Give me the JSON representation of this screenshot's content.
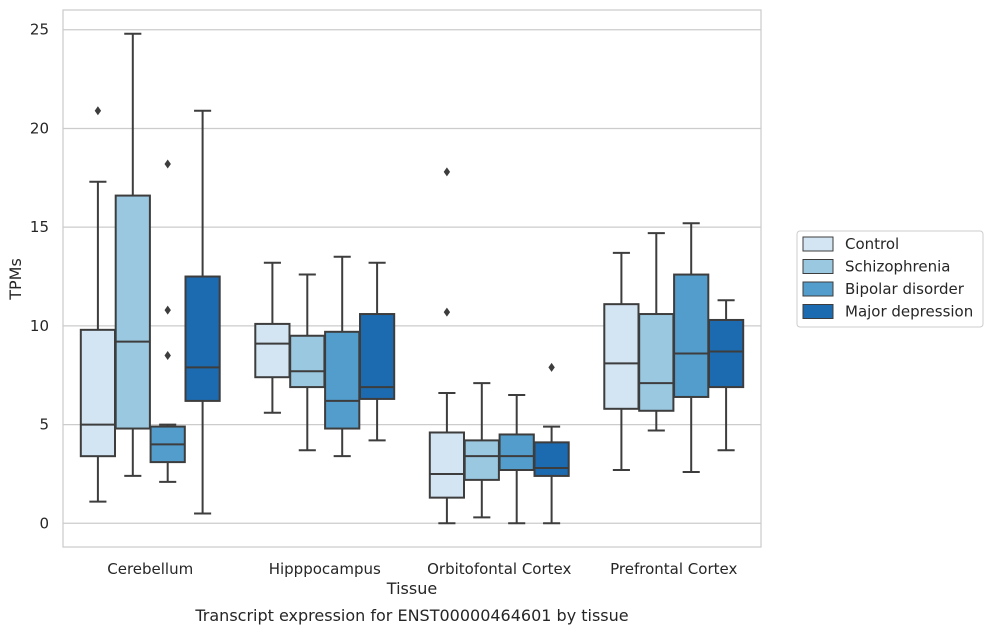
{
  "caption": "Transcript expression for ENST00000464601 by tissue",
  "chart_data": {
    "type": "box",
    "title": "",
    "xlabel": "Tissue",
    "ylabel": "TPMs",
    "ylim": [
      -1.2,
      26
    ],
    "yticks": [
      0,
      5,
      10,
      15,
      20,
      25
    ],
    "grid": "horizontal",
    "legend_position": "right",
    "categories": [
      "Cerebellum",
      "Hipppocampus",
      "Orbitofontal Cortex",
      "Prefrontal Cortex"
    ],
    "series": [
      {
        "name": "Control",
        "color": "#d3e4f3",
        "boxes": [
          {
            "whislo": 1.1,
            "q1": 3.4,
            "med": 5.0,
            "q3": 9.8,
            "whishi": 17.3,
            "fliers": [
              20.9
            ]
          },
          {
            "whislo": 5.6,
            "q1": 7.4,
            "med": 9.1,
            "q3": 10.1,
            "whishi": 13.2,
            "fliers": []
          },
          {
            "whislo": 0.0,
            "q1": 1.3,
            "med": 2.5,
            "q3": 4.6,
            "whishi": 6.6,
            "fliers": [
              10.7,
              17.8
            ]
          },
          {
            "whislo": 2.7,
            "q1": 5.8,
            "med": 8.1,
            "q3": 11.1,
            "whishi": 13.7,
            "fliers": []
          }
        ]
      },
      {
        "name": "Schizophrenia",
        "color": "#9ac8e0",
        "boxes": [
          {
            "whislo": 2.4,
            "q1": 4.8,
            "med": 9.2,
            "q3": 16.6,
            "whishi": 24.8,
            "fliers": []
          },
          {
            "whislo": 3.7,
            "q1": 6.9,
            "med": 7.7,
            "q3": 9.5,
            "whishi": 12.6,
            "fliers": []
          },
          {
            "whislo": 0.3,
            "q1": 2.2,
            "med": 3.4,
            "q3": 4.2,
            "whishi": 7.1,
            "fliers": []
          },
          {
            "whislo": 4.7,
            "q1": 5.7,
            "med": 7.1,
            "q3": 10.6,
            "whishi": 14.7,
            "fliers": []
          }
        ]
      },
      {
        "name": "Bipolar disorder",
        "color": "#529dcc",
        "boxes": [
          {
            "whislo": 2.1,
            "q1": 3.1,
            "med": 4.0,
            "q3": 4.9,
            "whishi": 5.0,
            "fliers": [
              8.5,
              10.8,
              18.2
            ]
          },
          {
            "whislo": 3.4,
            "q1": 4.8,
            "med": 6.2,
            "q3": 9.7,
            "whishi": 13.5,
            "fliers": []
          },
          {
            "whislo": 0.0,
            "q1": 2.7,
            "med": 3.4,
            "q3": 4.5,
            "whishi": 6.5,
            "fliers": []
          },
          {
            "whislo": 2.6,
            "q1": 6.4,
            "med": 8.6,
            "q3": 12.6,
            "whishi": 15.2,
            "fliers": []
          }
        ]
      },
      {
        "name": "Major depression",
        "color": "#1c6aaf",
        "boxes": [
          {
            "whislo": 0.5,
            "q1": 6.2,
            "med": 7.9,
            "q3": 12.5,
            "whishi": 20.9,
            "fliers": []
          },
          {
            "whislo": 4.2,
            "q1": 6.3,
            "med": 6.9,
            "q3": 10.6,
            "whishi": 13.2,
            "fliers": []
          },
          {
            "whislo": 0.0,
            "q1": 2.4,
            "med": 2.8,
            "q3": 4.1,
            "whishi": 4.9,
            "fliers": [
              7.9
            ]
          },
          {
            "whislo": 3.7,
            "q1": 6.9,
            "med": 8.7,
            "q3": 10.3,
            "whishi": 11.3,
            "fliers": []
          }
        ]
      }
    ]
  }
}
